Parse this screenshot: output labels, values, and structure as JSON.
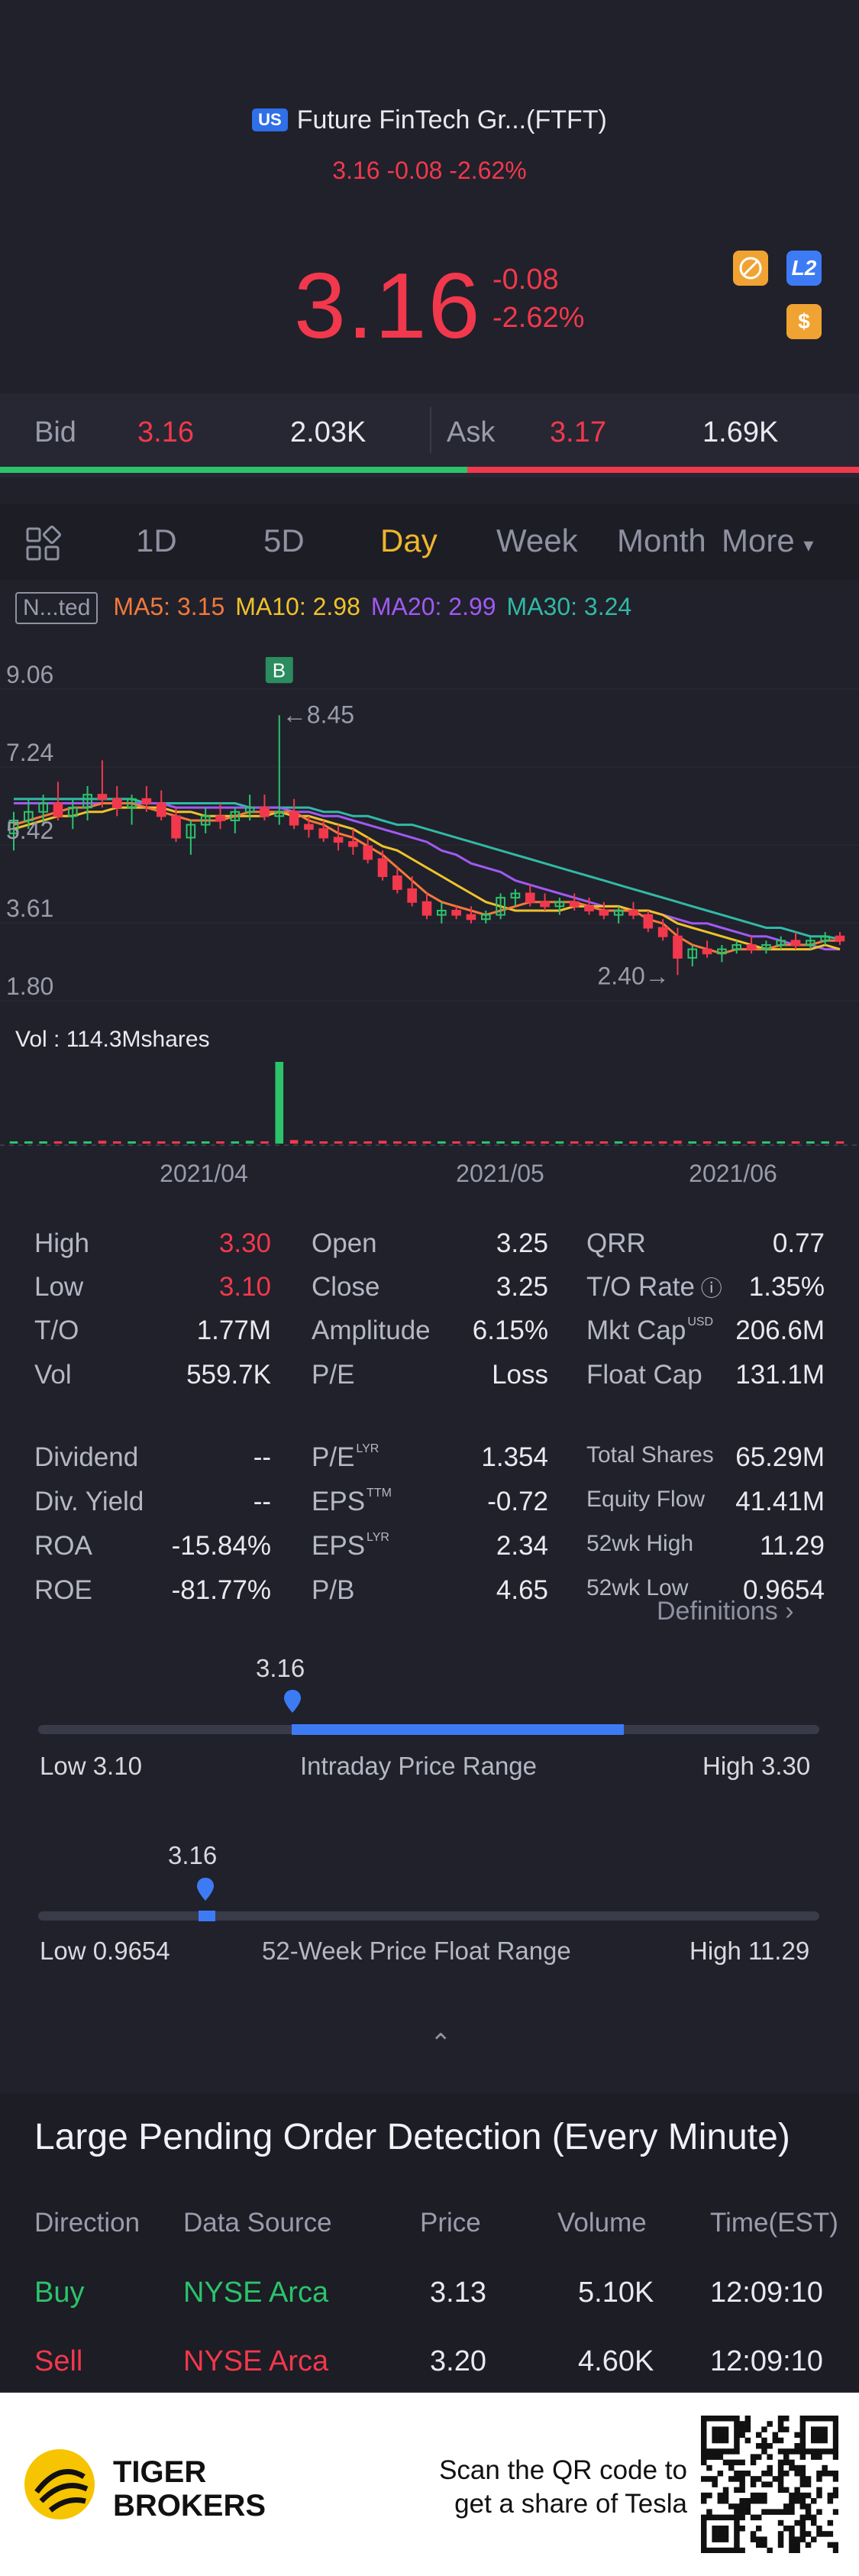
{
  "header": {
    "badge": "US",
    "title": "Future FinTech Gr...(FTFT)",
    "subtitle": "3.16 -0.08 -2.62%",
    "price": "3.16",
    "change": "-0.08",
    "change_pct": "-2.62%",
    "icons": [
      "no-ads-icon",
      "l2-icon",
      "dollar-icon"
    ],
    "icon_l2_label": "L2",
    "icon_dollar_label": "$"
  },
  "bidask": {
    "bid_label": "Bid",
    "bid_price": "3.16",
    "bid_volume": "2.03K",
    "ask_label": "Ask",
    "ask_price": "3.17",
    "ask_volume": "1.69K",
    "bid_share": 0.544
  },
  "tabs": {
    "items": [
      "1D",
      "5D",
      "Day",
      "Week",
      "Month",
      "More"
    ],
    "active": "Day"
  },
  "indicators": {
    "tag": "N...ted",
    "ma5": "MA5: 3.15",
    "ma10": "MA10: 2.98",
    "ma20": "MA20: 2.99",
    "ma30": "MA30: 3.24",
    "colors": {
      "ma5": "#f3793a",
      "ma10": "#f0c22b",
      "ma20": "#a259f2",
      "ma30": "#31b9a5"
    }
  },
  "chart_data": {
    "type": "candlestick",
    "y_ticks": [
      "9.06",
      "7.24",
      "5.42",
      "3.61",
      "1.80"
    ],
    "ylim": [
      1.8,
      9.06
    ],
    "x_ticks": [
      "2021/04",
      "2021/05",
      "2021/06"
    ],
    "high_marker": "←8.45",
    "low_marker": "2.40→",
    "buy_marker": "B",
    "volume_label": "Vol  : 114.3Mshares",
    "candles": [
      [
        5.7,
        6.2,
        5.3,
        6.0
      ],
      [
        6.0,
        6.5,
        5.8,
        6.2
      ],
      [
        6.2,
        6.6,
        5.9,
        6.4
      ],
      [
        6.4,
        6.9,
        6.0,
        6.1
      ],
      [
        6.1,
        6.5,
        5.8,
        6.3
      ],
      [
        6.3,
        6.8,
        6.0,
        6.6
      ],
      [
        6.6,
        7.4,
        6.3,
        6.5
      ],
      [
        6.5,
        6.8,
        6.1,
        6.3
      ],
      [
        6.3,
        6.6,
        5.9,
        6.5
      ],
      [
        6.5,
        6.8,
        6.2,
        6.4
      ],
      [
        6.4,
        6.7,
        6.0,
        6.1
      ],
      [
        6.1,
        6.3,
        5.5,
        5.6
      ],
      [
        5.6,
        6.0,
        5.2,
        5.9
      ],
      [
        5.9,
        6.3,
        5.7,
        6.1
      ],
      [
        6.1,
        6.4,
        5.8,
        6.0
      ],
      [
        6.0,
        6.3,
        5.7,
        6.2
      ],
      [
        6.2,
        6.6,
        6.0,
        6.3
      ],
      [
        6.3,
        6.6,
        6.0,
        6.1
      ],
      [
        6.1,
        8.45,
        5.9,
        6.2
      ],
      [
        6.2,
        6.5,
        5.8,
        5.9
      ],
      [
        5.9,
        6.1,
        5.6,
        5.8
      ],
      [
        5.8,
        6.0,
        5.5,
        5.6
      ],
      [
        5.6,
        5.9,
        5.3,
        5.5
      ],
      [
        5.5,
        5.8,
        5.2,
        5.4
      ],
      [
        5.4,
        5.6,
        5.0,
        5.1
      ],
      [
        5.1,
        5.3,
        4.6,
        4.7
      ],
      [
        4.7,
        4.9,
        4.3,
        4.4
      ],
      [
        4.4,
        4.7,
        4.0,
        4.1
      ],
      [
        4.1,
        4.3,
        3.7,
        3.8
      ],
      [
        3.8,
        4.1,
        3.6,
        3.9
      ],
      [
        3.9,
        4.0,
        3.7,
        3.8
      ],
      [
        3.8,
        4.0,
        3.6,
        3.7
      ],
      [
        3.7,
        3.9,
        3.6,
        3.8
      ],
      [
        3.8,
        4.3,
        3.7,
        4.2
      ],
      [
        4.2,
        4.4,
        4.0,
        4.3
      ],
      [
        4.3,
        4.5,
        4.0,
        4.1
      ],
      [
        4.1,
        4.3,
        3.9,
        4.0
      ],
      [
        4.0,
        4.2,
        3.8,
        4.1
      ],
      [
        4.1,
        4.3,
        3.9,
        4.0
      ],
      [
        4.0,
        4.2,
        3.8,
        3.9
      ],
      [
        3.9,
        4.1,
        3.7,
        3.8
      ],
      [
        3.8,
        4.0,
        3.6,
        3.9
      ],
      [
        3.9,
        4.1,
        3.7,
        3.8
      ],
      [
        3.8,
        3.9,
        3.4,
        3.5
      ],
      [
        3.5,
        3.7,
        3.2,
        3.3
      ],
      [
        3.3,
        3.5,
        2.4,
        2.8
      ],
      [
        2.8,
        3.1,
        2.6,
        3.0
      ],
      [
        3.0,
        3.2,
        2.8,
        2.9
      ],
      [
        2.9,
        3.1,
        2.7,
        3.0
      ],
      [
        3.0,
        3.2,
        2.9,
        3.1
      ],
      [
        3.1,
        3.3,
        2.9,
        3.0
      ],
      [
        3.0,
        3.2,
        2.9,
        3.1
      ],
      [
        3.1,
        3.3,
        3.0,
        3.2
      ],
      [
        3.2,
        3.4,
        3.0,
        3.1
      ],
      [
        3.1,
        3.3,
        3.0,
        3.2
      ],
      [
        3.2,
        3.4,
        3.1,
        3.3
      ],
      [
        3.3,
        3.4,
        3.1,
        3.2
      ]
    ],
    "ma5": [
      5.9,
      6.0,
      6.1,
      6.2,
      6.3,
      6.3,
      6.4,
      6.4,
      6.4,
      6.3,
      6.2,
      6.1,
      6.0,
      6.0,
      6.0,
      6.1,
      6.2,
      6.2,
      6.2,
      6.2,
      6.0,
      5.9,
      5.7,
      5.6,
      5.4,
      5.2,
      4.9,
      4.6,
      4.3,
      4.1,
      4.0,
      3.9,
      3.8,
      3.9,
      4.0,
      4.1,
      4.1,
      4.1,
      4.1,
      4.0,
      3.9,
      3.9,
      3.9,
      3.7,
      3.6,
      3.3,
      3.1,
      3.0,
      2.9,
      3.0,
      3.0,
      3.0,
      3.1,
      3.1,
      3.1,
      3.2,
      3.2
    ],
    "ma10": [
      5.8,
      5.9,
      6.0,
      6.1,
      6.1,
      6.2,
      6.2,
      6.3,
      6.3,
      6.3,
      6.3,
      6.2,
      6.2,
      6.1,
      6.1,
      6.1,
      6.1,
      6.1,
      6.2,
      6.1,
      6.1,
      6.0,
      5.9,
      5.8,
      5.6,
      5.4,
      5.3,
      5.1,
      4.9,
      4.7,
      4.5,
      4.3,
      4.1,
      4.0,
      3.9,
      3.9,
      3.9,
      3.9,
      4.0,
      4.0,
      4.0,
      4.0,
      3.9,
      3.9,
      3.8,
      3.6,
      3.5,
      3.4,
      3.3,
      3.2,
      3.1,
      3.0,
      3.0,
      3.0,
      3.0,
      3.1,
      3.0
    ],
    "ma20": [
      6.4,
      6.4,
      6.4,
      6.4,
      6.4,
      6.4,
      6.4,
      6.4,
      6.4,
      6.4,
      6.4,
      6.3,
      6.3,
      6.3,
      6.3,
      6.3,
      6.3,
      6.3,
      6.3,
      6.2,
      6.2,
      6.1,
      6.1,
      6.0,
      5.9,
      5.8,
      5.7,
      5.6,
      5.5,
      5.3,
      5.2,
      5.0,
      4.9,
      4.8,
      4.6,
      4.5,
      4.4,
      4.3,
      4.2,
      4.1,
      4.0,
      4.0,
      3.9,
      3.9,
      3.8,
      3.7,
      3.6,
      3.6,
      3.5,
      3.4,
      3.3,
      3.3,
      3.2,
      3.1,
      3.1,
      3.0,
      3.0
    ],
    "ma30": [
      6.5,
      6.5,
      6.5,
      6.5,
      6.5,
      6.5,
      6.5,
      6.5,
      6.5,
      6.4,
      6.4,
      6.4,
      6.4,
      6.4,
      6.4,
      6.4,
      6.3,
      6.3,
      6.3,
      6.3,
      6.3,
      6.2,
      6.2,
      6.1,
      6.1,
      6.0,
      5.9,
      5.9,
      5.8,
      5.7,
      5.6,
      5.5,
      5.4,
      5.3,
      5.2,
      5.1,
      5.0,
      4.9,
      4.8,
      4.7,
      4.6,
      4.5,
      4.4,
      4.3,
      4.2,
      4.1,
      4.0,
      3.9,
      3.8,
      3.7,
      3.6,
      3.5,
      3.5,
      3.4,
      3.3,
      3.3,
      3.24
    ],
    "volume": [
      2,
      3,
      2,
      3,
      2,
      3,
      4,
      2,
      3,
      2,
      3,
      2,
      2,
      3,
      2,
      3,
      4,
      3,
      114.3,
      5,
      4,
      3,
      2,
      3,
      2,
      4,
      3,
      2,
      3,
      2,
      2,
      2,
      2,
      3,
      2,
      2,
      2,
      2,
      2,
      2,
      2,
      2,
      2,
      3,
      2,
      4,
      2,
      2,
      2,
      2,
      2,
      2,
      2,
      2,
      2,
      2,
      2
    ],
    "volume_max": 114.3
  },
  "stats": {
    "col1": [
      {
        "label": "High",
        "value": "3.30",
        "color": "#f2384c"
      },
      {
        "label": "Low",
        "value": "3.10",
        "color": "#f2384c"
      },
      {
        "label": "T/O",
        "value": "1.77M"
      },
      {
        "label": "Vol",
        "value": "559.7K"
      },
      {
        "label": "Dividend",
        "value": "--"
      },
      {
        "label": "Div. Yield",
        "value": "--"
      },
      {
        "label": "ROA",
        "value": "-15.84%"
      },
      {
        "label": "ROE",
        "value": "-81.77%"
      }
    ],
    "col2": [
      {
        "label": "Open",
        "value": "3.25"
      },
      {
        "label": "Close",
        "value": "3.25"
      },
      {
        "label": "Amplitude",
        "value": "6.15%"
      },
      {
        "label": "P/E",
        "value": "Loss"
      },
      {
        "label": "P/E",
        "sup": "LYR",
        "value": "1.354"
      },
      {
        "label": "EPS",
        "sup": "TTM",
        "value": "-0.72"
      },
      {
        "label": "EPS",
        "sup": "LYR",
        "value": "2.34"
      },
      {
        "label": "P/B",
        "value": "4.65"
      }
    ],
    "col3": [
      {
        "label": "QRR",
        "value": "0.77"
      },
      {
        "label": "T/O Rate",
        "value": "1.35%"
      },
      {
        "label": "Mkt Cap",
        "sup": "USD",
        "value": "206.6M"
      },
      {
        "label": "Float Cap",
        "value": "131.1M"
      },
      {
        "label": "Total Shares",
        "value": "65.29M"
      },
      {
        "label": "Equity Flow",
        "value": "41.41M"
      },
      {
        "label": "52wk High",
        "value": "11.29"
      },
      {
        "label": "52wk Low",
        "value": "0.9654"
      }
    ],
    "definitions": "Definitions"
  },
  "ranges": {
    "intraday": {
      "current": "3.16",
      "low": "Low 3.10",
      "high": "High 3.30",
      "title": "Intraday Price Range",
      "fill_start": 0.325,
      "fill_end": 0.75
    },
    "week52": {
      "current": "3.16",
      "low": "Low 0.9654",
      "high": "High 11.29",
      "title": "52-Week Price Float Range",
      "position": 0.21
    }
  },
  "pending": {
    "title": "Large Pending Order Detection (Every Minute)",
    "headers": [
      "Direction",
      "Data Source",
      "Price",
      "Volume",
      "Time(EST)"
    ],
    "rows": [
      {
        "direction": "Buy",
        "source": "NYSE Arca",
        "price": "3.13",
        "volume": "5.10K",
        "time": "12:09:10"
      },
      {
        "direction": "Sell",
        "source": "NYSE Arca",
        "price": "3.20",
        "volume": "4.60K",
        "time": "12:09:10"
      }
    ]
  },
  "footer": {
    "brand_line1": "TIGER",
    "brand_line2": "BROKERS",
    "promo_line1": "Scan the QR code to",
    "promo_line2": "get a share of Tesla"
  }
}
